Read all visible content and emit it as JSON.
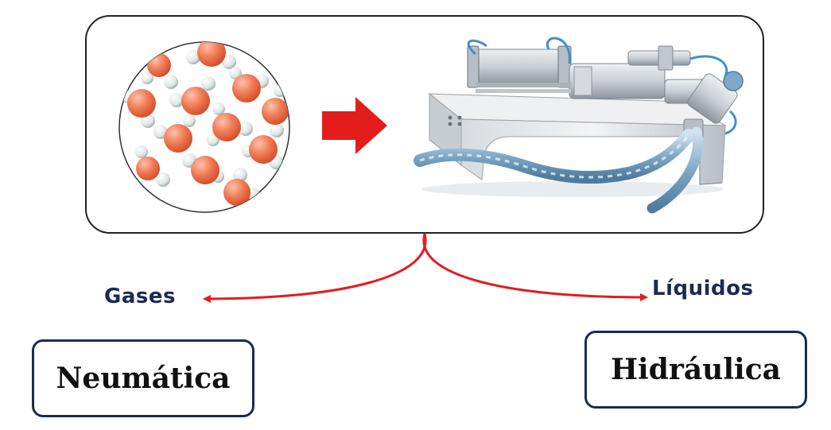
{
  "labels": {
    "left_branch": "Gases",
    "right_branch": "Líquidos"
  },
  "boxes": {
    "left": "Neumática",
    "right": "Hidráulica"
  },
  "colors": {
    "frame_border": "#222222",
    "arrow_red": "#e51c1c",
    "label_navy": "#1b2a55",
    "molecule_oxygen": "#f07a55",
    "molecule_hydrogen": "#dfe6e4",
    "machine_steel": "#c9ced3",
    "hose_blue": "#7fa8c8"
  },
  "icons": {
    "molecules": "water-molecules-icon",
    "arrow": "right-arrow-icon",
    "machine": "piston-filling-machine-icon"
  }
}
